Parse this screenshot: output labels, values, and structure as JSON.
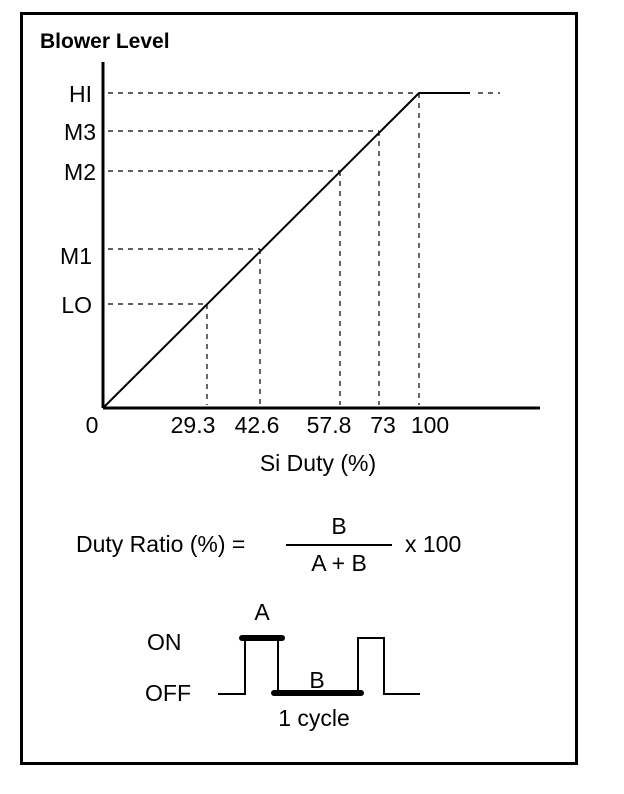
{
  "title": "Blower Level",
  "chart_data": {
    "type": "line",
    "ylevels": [
      "LO",
      "M1",
      "M2",
      "M3",
      "HI"
    ],
    "xticks": [
      "0",
      "29.3",
      "42.6",
      "57.8",
      "73",
      "100"
    ],
    "xlabel": "Si Duty (%)",
    "ylabel": "Blower Level",
    "points": [
      {
        "x": 0,
        "level": "0"
      },
      {
        "x": 29.3,
        "level": "LO"
      },
      {
        "x": 42.6,
        "level": "M1"
      },
      {
        "x": 57.8,
        "level": "M2"
      },
      {
        "x": 73,
        "level": "M3"
      },
      {
        "x": 100,
        "level": "HI"
      }
    ]
  },
  "formula": {
    "lhs": "Duty Ratio (%) =",
    "numerator": "B",
    "denominator": "A + B",
    "multiplier": "x 100"
  },
  "waveform": {
    "on_label": "ON",
    "off_label": "OFF",
    "a_label": "A",
    "b_label": "B",
    "cycle_label": "1 cycle"
  }
}
